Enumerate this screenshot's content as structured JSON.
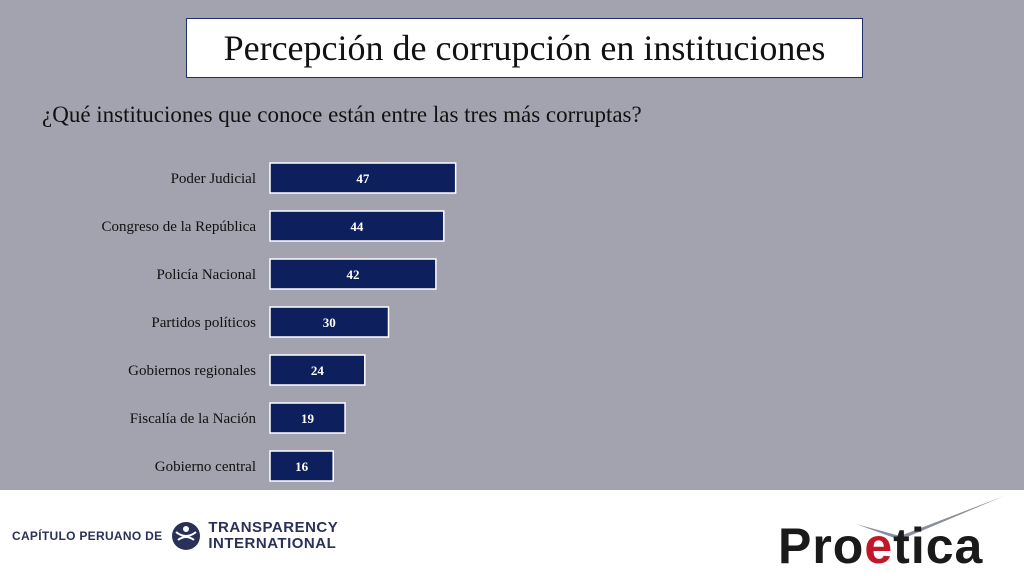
{
  "slide": {
    "title": "Percepción de corrupción en instituciones",
    "question": "¿Qué instituciones que conoce están entre las tres más corruptas?"
  },
  "chart_data": {
    "type": "bar",
    "orientation": "horizontal",
    "categories": [
      "Poder Judicial",
      "Congreso de la República",
      "Policía Nacional",
      "Partidos políticos",
      "Gobiernos regionales",
      "Fiscalía de la Nación",
      "Gobierno central"
    ],
    "values": [
      47,
      44,
      42,
      30,
      24,
      19,
      16
    ],
    "title": "",
    "xlabel": "",
    "ylabel": "",
    "xlim": [
      0,
      100
    ],
    "grid": false,
    "legend": "none",
    "bar_color": "#0d1f5c"
  },
  "footer": {
    "chapter_label": "CAPÍTULO PERUANO DE",
    "ti_line1": "TRANSPARENCY",
    "ti_line2": "INTERNATIONAL",
    "brand_part1": "Pro",
    "brand_part2": "e",
    "brand_part3": "tica",
    "brand_color": "#c0182a"
  }
}
